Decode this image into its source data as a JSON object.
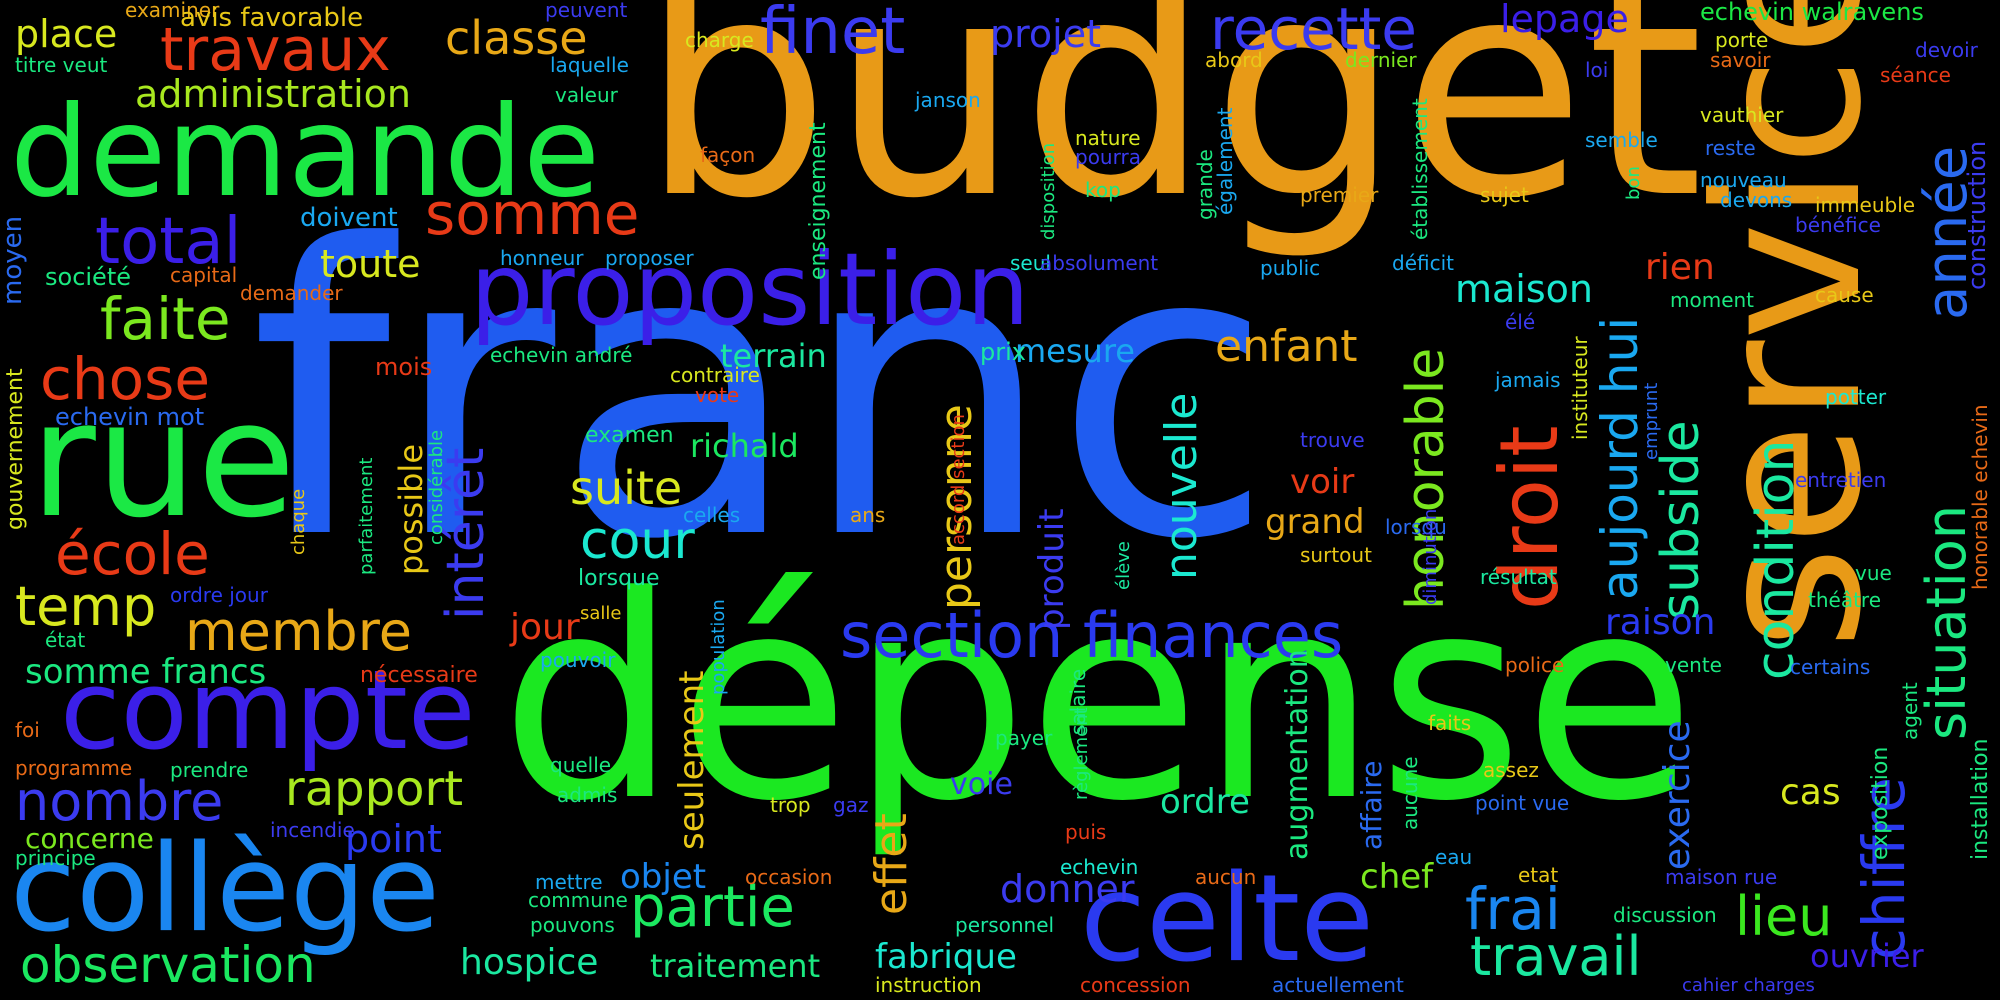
{
  "words": [
    {
      "text": "budget",
      "color": "#e89a17"
    },
    {
      "text": "franc",
      "color": "#1f5cf0"
    },
    {
      "text": "dépense",
      "color": "#1be821"
    },
    {
      "text": "service",
      "color": "#e89a17"
    },
    {
      "text": "demande",
      "color": "#1be845"
    },
    {
      "text": "proposition",
      "color": "#3b1fe8"
    },
    {
      "text": "rue",
      "color": "#1be845"
    },
    {
      "text": "compte",
      "color": "#3b1fe8"
    },
    {
      "text": "collège",
      "color": "#1a86f0"
    },
    {
      "text": "celte",
      "color": "#2a3af0"
    },
    {
      "text": "section finances",
      "color": "#2a3af0"
    },
    {
      "text": "droit",
      "color": "#e83a17"
    },
    {
      "text": "total",
      "color": "#3b1fe8"
    },
    {
      "text": "finet",
      "color": "#3b3bf0"
    },
    {
      "text": "recette",
      "color": "#3b3bf0"
    },
    {
      "text": "travaux",
      "color": "#e83a17"
    },
    {
      "text": "somme",
      "color": "#e83a17"
    },
    {
      "text": "chose",
      "color": "#e83a17"
    },
    {
      "text": "école",
      "color": "#e83a17"
    },
    {
      "text": "faite",
      "color": "#7be81f"
    },
    {
      "text": "temp",
      "color": "#d8e81f"
    },
    {
      "text": "membre",
      "color": "#e8a817"
    },
    {
      "text": "nombre",
      "color": "#3b3bf0"
    },
    {
      "text": "observation",
      "color": "#1be860"
    },
    {
      "text": "rapport",
      "color": "#a8e81f"
    },
    {
      "text": "intérêt",
      "color": "#3b3bf0"
    },
    {
      "text": "année",
      "color": "#2a6af0"
    },
    {
      "text": "situation",
      "color": "#1be880"
    },
    {
      "text": "chiffre",
      "color": "#2a3af0"
    },
    {
      "text": "condition",
      "color": "#1be8a0"
    },
    {
      "text": "subside",
      "color": "#1be8a0"
    },
    {
      "text": "honorable",
      "color": "#7be81f"
    },
    {
      "text": "aujourd hui",
      "color": "#1aa8f0"
    },
    {
      "text": "partie",
      "color": "#1be860"
    },
    {
      "text": "travail",
      "color": "#1be8a0"
    },
    {
      "text": "lieu",
      "color": "#3be81f"
    },
    {
      "text": "frai",
      "color": "#1a86f0"
    },
    {
      "text": "cour",
      "color": "#1be8d0"
    },
    {
      "text": "suite",
      "color": "#d8e81f"
    },
    {
      "text": "personne",
      "color": "#e8c817"
    },
    {
      "text": "nouvelle",
      "color": "#1be8d0"
    },
    {
      "text": "enfant",
      "color": "#e8a817"
    },
    {
      "text": "maison",
      "color": "#1be8d0"
    },
    {
      "text": "rien",
      "color": "#e83a17"
    },
    {
      "text": "projet",
      "color": "#3b3bf0"
    },
    {
      "text": "classe",
      "color": "#e8a817"
    },
    {
      "text": "lepage",
      "color": "#3b1fe8"
    },
    {
      "text": "administration",
      "color": "#a8e81f"
    },
    {
      "text": "place",
      "color": "#d8e81f"
    },
    {
      "text": "toute",
      "color": "#d8e81f"
    },
    {
      "text": "point",
      "color": "#2a3af0"
    },
    {
      "text": "objet",
      "color": "#1a86f0"
    },
    {
      "text": "hospice",
      "color": "#1be8a0"
    },
    {
      "text": "traitement",
      "color": "#1be880"
    },
    {
      "text": "fabrique",
      "color": "#1be8d0"
    },
    {
      "text": "donner",
      "color": "#3b3bf0"
    },
    {
      "text": "chef",
      "color": "#7be81f"
    },
    {
      "text": "ordre",
      "color": "#1be8a0"
    },
    {
      "text": "effet",
      "color": "#e8a817"
    },
    {
      "text": "seulement",
      "color": "#e8c817"
    },
    {
      "text": "produit",
      "color": "#3b3bf0"
    },
    {
      "text": "possible",
      "color": "#e8c817"
    },
    {
      "text": "jour",
      "color": "#e83a17"
    },
    {
      "text": "voir",
      "color": "#e83a17"
    },
    {
      "text": "grand",
      "color": "#e8a817"
    },
    {
      "text": "raison",
      "color": "#2a3af0"
    },
    {
      "text": "exercice",
      "color": "#2a6af0"
    },
    {
      "text": "cas",
      "color": "#d8e81f"
    },
    {
      "text": "ouvrier",
      "color": "#3b1fe8"
    },
    {
      "text": "terrain",
      "color": "#1be8a0"
    },
    {
      "text": "mesure",
      "color": "#1aa8f0"
    },
    {
      "text": "richald",
      "color": "#1be860"
    },
    {
      "text": "somme francs",
      "color": "#1be880"
    },
    {
      "text": "concerne",
      "color": "#7be81f"
    },
    {
      "text": "echevin walravens",
      "color": "#1be845"
    },
    {
      "text": "examiner",
      "color": "#e8a817"
    },
    {
      "text": "avis favorable",
      "color": "#e8c817"
    },
    {
      "text": "peuvent",
      "color": "#3b3bf0"
    },
    {
      "text": "titre veut",
      "color": "#1be880"
    },
    {
      "text": "laquelle",
      "color": "#1aa8f0"
    },
    {
      "text": "valeur",
      "color": "#1be880"
    },
    {
      "text": "charge",
      "color": "#d8e81f"
    },
    {
      "text": "janson",
      "color": "#1aa8f0"
    },
    {
      "text": "abord",
      "color": "#e8c817"
    },
    {
      "text": "dernier",
      "color": "#7be81f"
    },
    {
      "text": "porte",
      "color": "#d8e81f"
    },
    {
      "text": "savoir",
      "color": "#e86a17"
    },
    {
      "text": "devoir",
      "color": "#3b3bf0"
    },
    {
      "text": "séance",
      "color": "#e83a17"
    },
    {
      "text": "loi",
      "color": "#3b3bf0"
    },
    {
      "text": "vauthier",
      "color": "#d8e81f"
    },
    {
      "text": "semble",
      "color": "#1aa8f0"
    },
    {
      "text": "reste",
      "color": "#2a6af0"
    },
    {
      "text": "nouveau",
      "color": "#1aa8f0"
    },
    {
      "text": "devons",
      "color": "#1aa8f0"
    },
    {
      "text": "immeuble",
      "color": "#e8c817"
    },
    {
      "text": "bénéfice",
      "color": "#3b3bf0"
    },
    {
      "text": "construction",
      "color": "#3b3bf0"
    },
    {
      "text": "nature",
      "color": "#d8e81f"
    },
    {
      "text": "pourra",
      "color": "#3b3bf0"
    },
    {
      "text": "façon",
      "color": "#e86a17"
    },
    {
      "text": "kop",
      "color": "#1be880"
    },
    {
      "text": "premier",
      "color": "#e8a817"
    },
    {
      "text": "sujet",
      "color": "#e8c817"
    },
    {
      "text": "bon",
      "color": "#1be880"
    },
    {
      "text": "doivent",
      "color": "#1aa8f0"
    },
    {
      "text": "société",
      "color": "#1be880"
    },
    {
      "text": "capital",
      "color": "#e86a17"
    },
    {
      "text": "demander",
      "color": "#e86a17"
    },
    {
      "text": "honneur",
      "color": "#1aa8f0"
    },
    {
      "text": "proposer",
      "color": "#1aa8f0"
    },
    {
      "text": "seul",
      "color": "#1be8d0"
    },
    {
      "text": "absolument",
      "color": "#3b3bf0"
    },
    {
      "text": "public",
      "color": "#1aa8f0"
    },
    {
      "text": "déficit",
      "color": "#1aa8f0"
    },
    {
      "text": "moment",
      "color": "#1be880"
    },
    {
      "text": "cause",
      "color": "#e8c817"
    },
    {
      "text": "élé",
      "color": "#3b3bf0"
    },
    {
      "text": "mois",
      "color": "#e83a17"
    },
    {
      "text": "echevin andré",
      "color": "#1be880"
    },
    {
      "text": "contraire",
      "color": "#d8e81f"
    },
    {
      "text": "vote",
      "color": "#e83a17"
    },
    {
      "text": "prix",
      "color": "#1be8a0"
    },
    {
      "text": "echevin mot",
      "color": "#2a6af0"
    },
    {
      "text": "examen",
      "color": "#1be880"
    },
    {
      "text": "jamais",
      "color": "#1aa8f0"
    },
    {
      "text": "potter",
      "color": "#1be8d0"
    },
    {
      "text": "trouve",
      "color": "#3b3bf0"
    },
    {
      "text": "entretien",
      "color": "#3b3bf0"
    },
    {
      "text": "celles",
      "color": "#1aa8f0"
    },
    {
      "text": "ans",
      "color": "#e8a817"
    },
    {
      "text": "lorsqu",
      "color": "#2a6af0"
    },
    {
      "text": "surtout",
      "color": "#e8c817"
    },
    {
      "text": "lorsque",
      "color": "#1be8a0"
    },
    {
      "text": "résultat",
      "color": "#1be8a0"
    },
    {
      "text": "vue",
      "color": "#1be880"
    },
    {
      "text": "théâtre",
      "color": "#1be880"
    },
    {
      "text": "ordre jour",
      "color": "#2a3af0"
    },
    {
      "text": "salle",
      "color": "#e8c817"
    },
    {
      "text": "état",
      "color": "#1be880"
    },
    {
      "text": "nécessaire",
      "color": "#e83a17"
    },
    {
      "text": "pouvoir",
      "color": "#1aa8f0"
    },
    {
      "text": "police",
      "color": "#e86a17"
    },
    {
      "text": "vente",
      "color": "#1be880"
    },
    {
      "text": "certains",
      "color": "#2a6af0"
    },
    {
      "text": "salaire",
      "color": "#1be880"
    },
    {
      "text": "foi",
      "color": "#e86a17"
    },
    {
      "text": "programme",
      "color": "#e86a17"
    },
    {
      "text": "prendre",
      "color": "#1be880"
    },
    {
      "text": "payer",
      "color": "#1be880"
    },
    {
      "text": "faits",
      "color": "#e8c817"
    },
    {
      "text": "quelle",
      "color": "#1be880"
    },
    {
      "text": "admis",
      "color": "#1be880"
    },
    {
      "text": "voie",
      "color": "#3b3bf0"
    },
    {
      "text": "trop",
      "color": "#d8e81f"
    },
    {
      "text": "gaz",
      "color": "#3b3bf0"
    },
    {
      "text": "assez",
      "color": "#e8c817"
    },
    {
      "text": "point vue",
      "color": "#2a6af0"
    },
    {
      "text": "incendie",
      "color": "#3b3bf0"
    },
    {
      "text": "principe",
      "color": "#1be880"
    },
    {
      "text": "puis",
      "color": "#e83a17"
    },
    {
      "text": "eau",
      "color": "#1aa8f0"
    },
    {
      "text": "etat",
      "color": "#e8c817"
    },
    {
      "text": "mettre",
      "color": "#1aa8f0"
    },
    {
      "text": "commune",
      "color": "#1be880"
    },
    {
      "text": "occasion",
      "color": "#e86a17"
    },
    {
      "text": "echevin",
      "color": "#1be8d0"
    },
    {
      "text": "aucun",
      "color": "#e86a17"
    },
    {
      "text": "maison rue",
      "color": "#3b3bf0"
    },
    {
      "text": "pouvons",
      "color": "#1be880"
    },
    {
      "text": "personnel",
      "color": "#1be8a0"
    },
    {
      "text": "discussion",
      "color": "#1be880"
    },
    {
      "text": "instruction",
      "color": "#d8e81f"
    },
    {
      "text": "concession",
      "color": "#e83a17"
    },
    {
      "text": "actuellement",
      "color": "#2a6af0"
    },
    {
      "text": "cahier charges",
      "color": "#3b3bf0"
    },
    {
      "text": "moyen",
      "color": "#2a6af0"
    },
    {
      "text": "gouvernement",
      "color": "#d8e81f"
    },
    {
      "text": "chaque",
      "color": "#e8c817"
    },
    {
      "text": "parfaitement",
      "color": "#1be880"
    },
    {
      "text": "considérable",
      "color": "#1be880"
    },
    {
      "text": "population",
      "color": "#1aa8f0"
    },
    {
      "text": "accord section",
      "color": "#e83a17"
    },
    {
      "text": "élève",
      "color": "#1be8a0"
    },
    {
      "text": "enseignement",
      "color": "#1be880"
    },
    {
      "text": "disposition",
      "color": "#1be880"
    },
    {
      "text": "grande",
      "color": "#1be880"
    },
    {
      "text": "également",
      "color": "#1aa8f0"
    },
    {
      "text": "établissement",
      "color": "#1be880"
    },
    {
      "text": "instituteur",
      "color": "#d8e81f"
    },
    {
      "text": "diminution",
      "color": "#3b3bf0"
    },
    {
      "text": "emprunt",
      "color": "#2a6af0"
    },
    {
      "text": "augmentation",
      "color": "#1be880"
    },
    {
      "text": "affaire",
      "color": "#2a6af0"
    },
    {
      "text": "aucune",
      "color": "#1be880"
    },
    {
      "text": "règlement",
      "color": "#1be880"
    },
    {
      "text": "exposition",
      "color": "#1be880"
    },
    {
      "text": "agent",
      "color": "#1be880"
    },
    {
      "text": "installation",
      "color": "#1be880"
    },
    {
      "text": "honorable echevin",
      "color": "#e86a17"
    }
  ]
}
